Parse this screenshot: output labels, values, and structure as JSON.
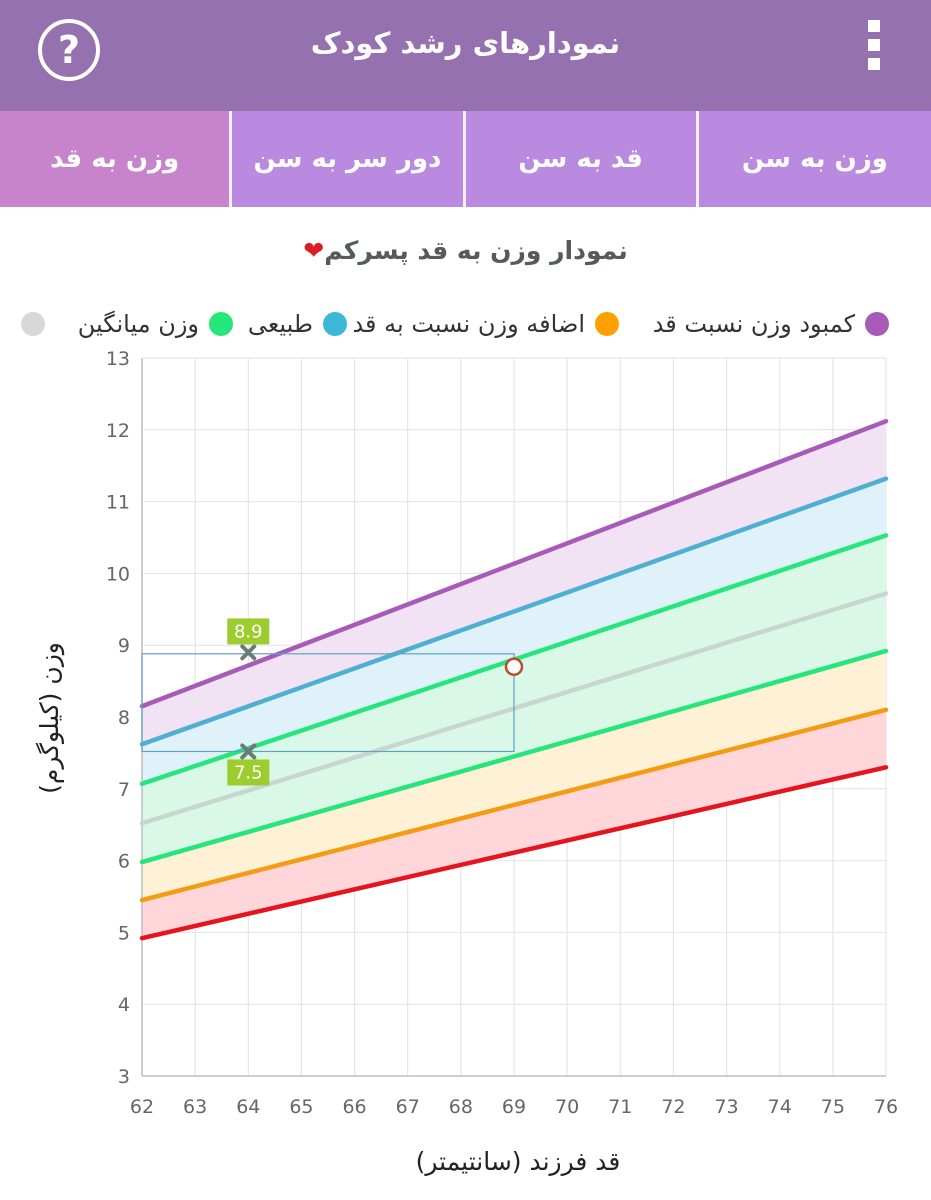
{
  "header": {
    "title": "نمودارهای رشد کودک",
    "help_label": "?"
  },
  "tabs": [
    {
      "label": "وزن به سن",
      "active": false
    },
    {
      "label": "قد به سن",
      "active": false
    },
    {
      "label": "دور سر به سن",
      "active": false
    },
    {
      "label": "وزن به قد",
      "active": true
    }
  ],
  "chart_heading": "نمودار وزن به قد پسرکم",
  "heart_icon": "heart-icon",
  "legend": [
    {
      "label": "کمبود وزن نسبت قد",
      "color": "#a75ab6"
    },
    {
      "label": "اضافه وزن نسبت به قد",
      "color": "#ff9f00"
    },
    {
      "label": "طبیعی",
      "color": "#3bb8d8"
    },
    {
      "label": "وزن میانگین",
      "color": "#26e57a"
    },
    {
      "label": "",
      "color": "#d8d8d8"
    }
  ],
  "chart_data": {
    "type": "line",
    "xlabel": "قد فرزند (سانتیمتر)",
    "ylabel": "وزن (کیلوگرم)",
    "xlim": [
      62,
      76
    ],
    "ylim": [
      3,
      13
    ],
    "x_ticks": [
      "62",
      "63",
      "64",
      "65",
      "66",
      "67",
      "68",
      "69",
      "70",
      "71",
      "72",
      "73",
      "74",
      "75",
      "76"
    ],
    "y_ticks": [
      "3",
      "4",
      "5",
      "6",
      "7",
      "8",
      "9",
      "10",
      "11",
      "12",
      "13"
    ],
    "grid": true,
    "x": [
      62,
      76
    ],
    "series": [
      {
        "color": "#a75ab6",
        "values": [
          8.15,
          12.12
        ],
        "fill": "#f1e3f4"
      },
      {
        "color": "#4fafd2",
        "values": [
          7.62,
          11.32
        ],
        "fill": "#dff2fa"
      },
      {
        "color": "#26e57a",
        "values": [
          7.07,
          10.53
        ],
        "fill": "#d9f8e7"
      },
      {
        "color": "#c9d6d0",
        "values": [
          6.52,
          9.72
        ],
        "fill": "#d9f8e7"
      },
      {
        "color": "#26e57a",
        "values": [
          5.98,
          8.92
        ],
        "fill": "#fff1d6"
      },
      {
        "color": "#f39c12",
        "values": [
          5.45,
          8.1
        ],
        "fill": "#ffd6d9"
      },
      {
        "color": "#e5141e",
        "values": [
          4.92,
          7.3
        ],
        "fill": null
      }
    ],
    "markers": [
      {
        "x": 64,
        "y": 8.9,
        "label": "8.9"
      },
      {
        "x": 64,
        "y": 7.52,
        "label": "7.5"
      }
    ],
    "point": {
      "x": 69,
      "y": 8.7
    },
    "range_box": {
      "x_max": 69,
      "y_min": 7.52,
      "y_max": 8.88
    }
  }
}
